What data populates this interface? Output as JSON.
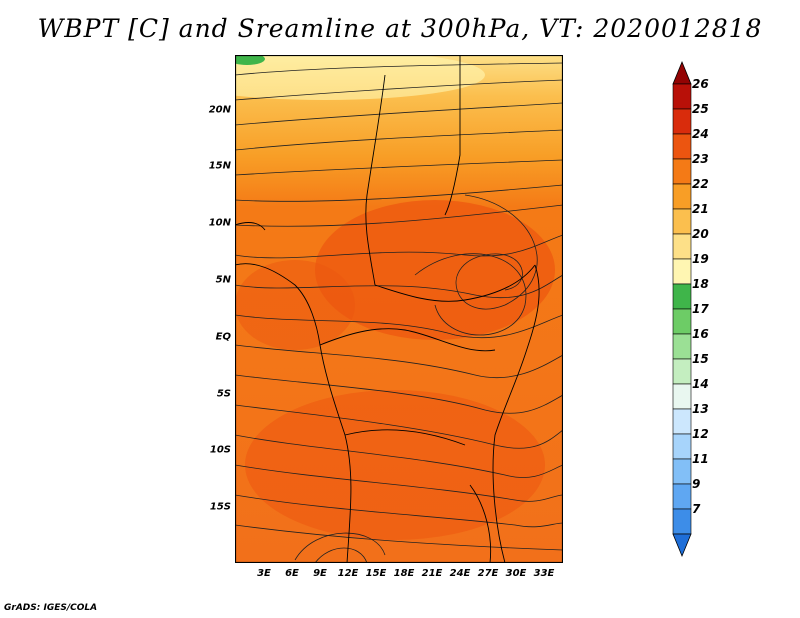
{
  "title": "WBPT [C] and Sreamline at 300hPa, VT: 2020012818",
  "credit": "GrADS: IGES/COLA",
  "map": {
    "lat_labels": [
      "20N",
      "15N",
      "10N",
      "5N",
      "EQ",
      "5S",
      "10S",
      "15S"
    ],
    "lon_labels": [
      "3E",
      "6E",
      "9E",
      "12E",
      "15E",
      "18E",
      "21E",
      "24E",
      "27E",
      "30E",
      "33E"
    ]
  },
  "colorbar": {
    "labels": [
      "7",
      "9",
      "11",
      "12",
      "13",
      "14",
      "15",
      "16",
      "17",
      "18",
      "19",
      "20",
      "21",
      "22",
      "23",
      "24",
      "25",
      "26"
    ],
    "colors": [
      "#1e6ed8",
      "#3d8de8",
      "#5fa7f2",
      "#82bff7",
      "#a7d4fb",
      "#cce7fd",
      "#e9f7f0",
      "#c4eec0",
      "#9be095",
      "#6dcc66",
      "#3fb54a",
      "#fff6b2",
      "#fde088",
      "#fbbf4e",
      "#f89e26",
      "#f47a16",
      "#ec5510",
      "#d92c0c",
      "#b81008",
      "#930303"
    ]
  }
}
